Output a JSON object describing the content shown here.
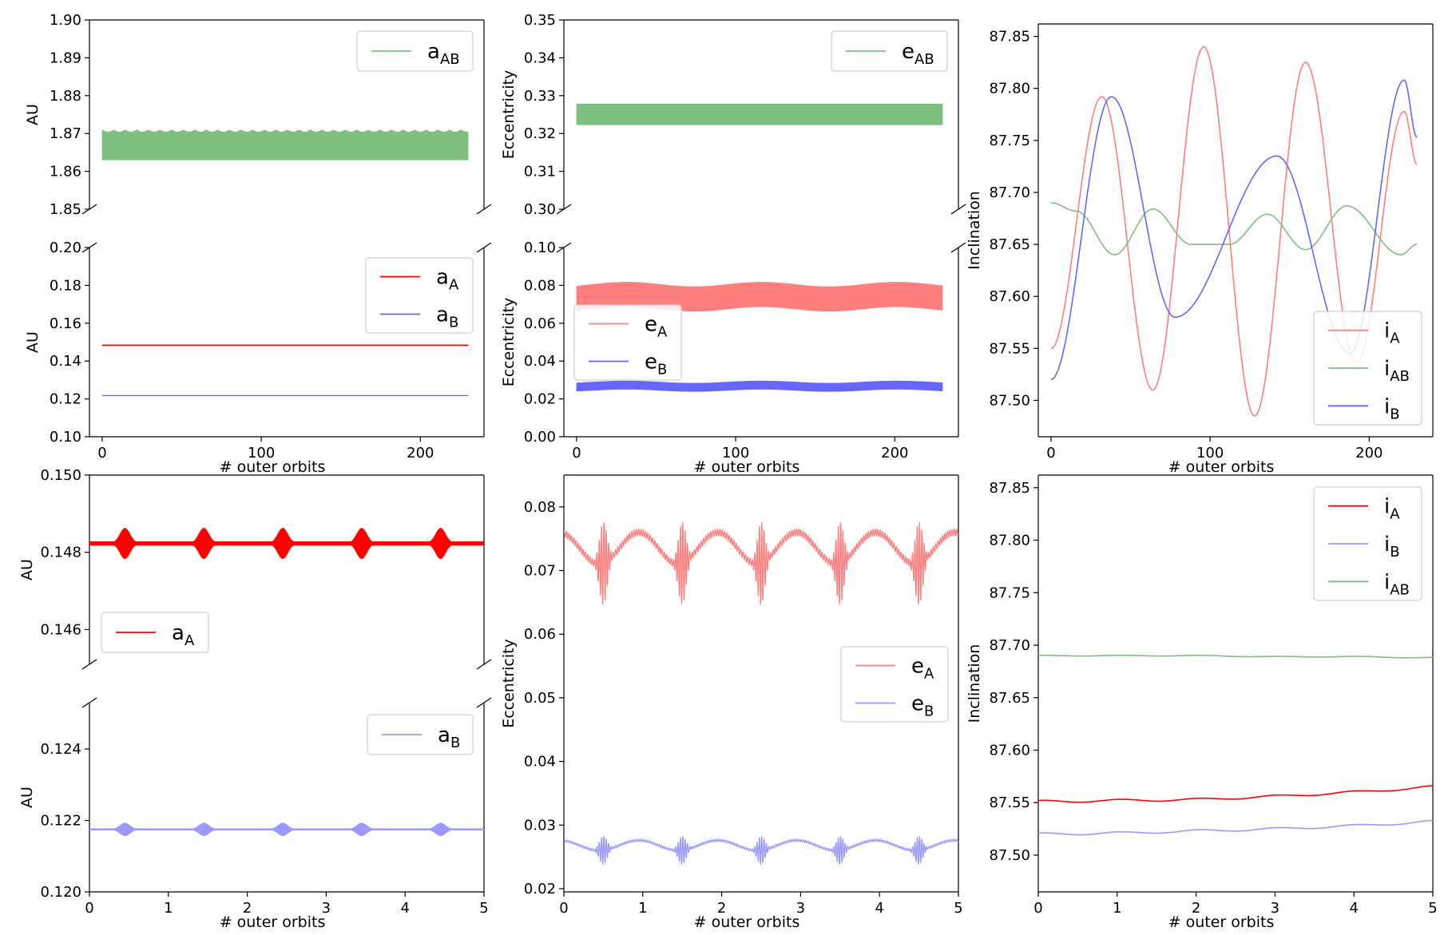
{
  "colors": {
    "red": "#ff0000",
    "light_red": "#ff7f7f",
    "blue": "#6666ff",
    "light_blue": "#9999ff",
    "green": "#7fbf7f"
  },
  "axes_labels": {
    "au": "AU",
    "ecc": "Eccentricity",
    "inc": "Inclination",
    "outer": "# outer orbits"
  },
  "legend_text": {
    "a_A": [
      "a",
      "A"
    ],
    "a_B": [
      "a",
      "B"
    ],
    "a_AB": [
      "a",
      "AB"
    ],
    "e_A": [
      "e",
      "A"
    ],
    "e_B": [
      "e",
      "B"
    ],
    "e_AB": [
      "e",
      "AB"
    ],
    "i_A": [
      "i",
      "A"
    ],
    "i_B": [
      "i",
      "B"
    ],
    "i_AB": [
      "i",
      "AB"
    ]
  },
  "chart_data": [
    {
      "type": "line",
      "panel": "top-left",
      "xlabel": "# outer orbits",
      "ylabel": "AU",
      "broken_axis": true,
      "xlim": [
        -8,
        240
      ],
      "xticks": [
        0,
        100,
        200
      ],
      "upper": {
        "ylim": [
          1.85,
          1.9
        ],
        "yticks": [
          "1.85",
          "1.86",
          "1.87",
          "1.88",
          "1.89",
          "1.90"
        ],
        "legend": "top-right",
        "series": [
          {
            "name": "a_AB",
            "color": "#7fbf7f",
            "band": [
              1.863,
              1.871
            ],
            "x_range": [
              0,
              230
            ]
          }
        ]
      },
      "lower": {
        "ylim": [
          0.1,
          0.2
        ],
        "yticks": [
          "0.10",
          "0.12",
          "0.14",
          "0.16",
          "0.18",
          "0.20"
        ],
        "legend": "top-right",
        "series": [
          {
            "name": "a_A",
            "color": "#ff0000",
            "band": [
              0.1482,
              0.1486
            ],
            "x_range": [
              0,
              230
            ]
          },
          {
            "name": "a_B",
            "color": "#6666ff",
            "band": [
              0.1216,
              0.1219
            ],
            "x_range": [
              0,
              230
            ]
          }
        ]
      }
    },
    {
      "type": "line",
      "panel": "top-middle",
      "xlabel": "# outer orbits",
      "ylabel": "Eccentricity",
      "broken_axis": true,
      "xlim": [
        -8,
        240
      ],
      "xticks": [
        0,
        100,
        200
      ],
      "upper": {
        "ylim": [
          0.3,
          0.35
        ],
        "yticks": [
          "0.30",
          "0.31",
          "0.32",
          "0.33",
          "0.34",
          "0.35"
        ],
        "legend": "top-right",
        "series": [
          {
            "name": "e_AB",
            "color": "#7fbf7f",
            "band": [
              0.3223,
              0.3278
            ],
            "x_range": [
              0,
              230
            ]
          }
        ]
      },
      "lower": {
        "ylim": [
          0.0,
          0.1
        ],
        "yticks": [
          "0.00",
          "0.02",
          "0.04",
          "0.06",
          "0.08",
          "0.10"
        ],
        "legend": "center-left",
        "series": [
          {
            "name": "e_A",
            "color": "#ff7f7f",
            "center": 0.074,
            "half_width": 0.0065,
            "mod_amp": 0.0012,
            "mod_period": 85,
            "x_range": [
              0,
              230
            ]
          },
          {
            "name": "e_B",
            "color": "#6666ff",
            "center": 0.0267,
            "half_width": 0.0022,
            "mod_amp": 0.0006,
            "mod_period": 85,
            "x_range": [
              0,
              230
            ]
          }
        ]
      }
    },
    {
      "type": "line",
      "panel": "top-right",
      "xlabel": "# outer orbits",
      "ylabel": "Inclination",
      "xlim": [
        -8,
        240
      ],
      "xticks": [
        0,
        100,
        200
      ],
      "ylim": [
        87.465,
        87.862
      ],
      "yticks": [
        "87.50",
        "87.55",
        "87.60",
        "87.65",
        "87.70",
        "87.75",
        "87.80",
        "87.85"
      ],
      "legend": "lower-right",
      "series": [
        {
          "name": "i_A",
          "color": "#ff7f7f",
          "x": [
            0,
            32,
            64,
            96,
            128,
            160,
            192,
            222,
            230
          ],
          "y": [
            87.55,
            87.792,
            87.51,
            87.84,
            87.485,
            87.825,
            87.535,
            87.778,
            87.727
          ]
        },
        {
          "name": "i_AB",
          "color": "#7fbf7f",
          "x": [
            0,
            16,
            40,
            64,
            88,
            112,
            136,
            160,
            186,
            220,
            230
          ],
          "y": [
            87.69,
            87.682,
            87.64,
            87.684,
            87.65,
            87.65,
            87.679,
            87.645,
            87.687,
            87.64,
            87.65
          ]
        },
        {
          "name": "i_B",
          "color": "#6666ff",
          "x": [
            0,
            38,
            78,
            142,
            188,
            222,
            230
          ],
          "y": [
            87.52,
            87.792,
            87.58,
            87.735,
            87.545,
            87.808,
            87.753
          ]
        }
      ]
    },
    {
      "type": "line",
      "panel": "bottom-left",
      "xlabel": "# outer orbits",
      "ylabel": "AU",
      "broken_axis": true,
      "xlim": [
        0,
        5
      ],
      "xticks": [
        "0",
        "1",
        "2",
        "3",
        "4",
        "5"
      ],
      "upper": {
        "ylim": [
          0.1451,
          0.15
        ],
        "yticks": [
          "0.146",
          "0.148",
          "0.150"
        ],
        "legend": "lower-left",
        "series": [
          {
            "name": "a_A",
            "color": "#ff0000",
            "baseline": 0.14823,
            "burst_amp": 0.0004,
            "bursts_at": [
              0.45,
              1.45,
              2.45,
              3.45,
              4.45
            ]
          }
        ]
      },
      "lower": {
        "ylim": [
          0.12,
          0.1253
        ],
        "yticks": [
          "0.120",
          "0.122",
          "0.124"
        ],
        "legend": "top-right",
        "series": [
          {
            "name": "a_B",
            "color": "#9999ff",
            "baseline": 0.12175,
            "burst_amp": 0.00018,
            "bursts_at": [
              0.45,
              1.45,
              2.45,
              3.45,
              4.45
            ]
          }
        ]
      }
    },
    {
      "type": "line",
      "panel": "bottom-middle",
      "xlabel": "# outer orbits",
      "ylabel": "Eccentricity",
      "xlim": [
        0,
        5
      ],
      "xticks": [
        "0",
        "1",
        "2",
        "3",
        "4",
        "5"
      ],
      "ylim": [
        0.0195,
        0.085
      ],
      "yticks": [
        "0.02",
        "0.03",
        "0.04",
        "0.05",
        "0.06",
        "0.07",
        "0.08"
      ],
      "legend": "center-right",
      "series": [
        {
          "name": "e_A",
          "color": "#ff7f7f",
          "baseline": 0.0735,
          "wave_amp": 0.0025,
          "burst_amp": 0.0065,
          "bursts_at": [
            0.5,
            1.5,
            2.5,
            3.5,
            4.5
          ]
        },
        {
          "name": "e_B",
          "color": "#9999ff",
          "baseline": 0.0268,
          "wave_amp": 0.0008,
          "burst_amp": 0.0022,
          "bursts_at": [
            0.5,
            1.5,
            2.5,
            3.5,
            4.5
          ]
        }
      ]
    },
    {
      "type": "line",
      "panel": "bottom-right",
      "xlabel": "# outer orbits",
      "ylabel": "Inclination",
      "xlim": [
        0,
        5
      ],
      "xticks": [
        "0",
        "1",
        "2",
        "3",
        "4",
        "5"
      ],
      "ylim": [
        87.465,
        87.862
      ],
      "yticks": [
        "87.50",
        "87.55",
        "87.60",
        "87.65",
        "87.70",
        "87.75",
        "87.80",
        "87.85"
      ],
      "legend": "top-right",
      "series": [
        {
          "name": "i_A",
          "color": "#ff0000",
          "x": [
            0,
            1,
            2,
            3,
            4,
            5
          ],
          "y": [
            87.551,
            87.552,
            87.553,
            87.556,
            87.56,
            87.565
          ]
        },
        {
          "name": "i_B",
          "color": "#9999ff",
          "x": [
            0,
            1,
            2,
            3,
            4,
            5
          ],
          "y": [
            87.52,
            87.521,
            87.523,
            87.525,
            87.528,
            87.532
          ]
        },
        {
          "name": "i_AB",
          "color": "#7fbf7f",
          "x": [
            0,
            1,
            2,
            3,
            4,
            5
          ],
          "y": [
            87.69,
            87.69,
            87.69,
            87.689,
            87.689,
            87.688
          ]
        }
      ]
    }
  ]
}
